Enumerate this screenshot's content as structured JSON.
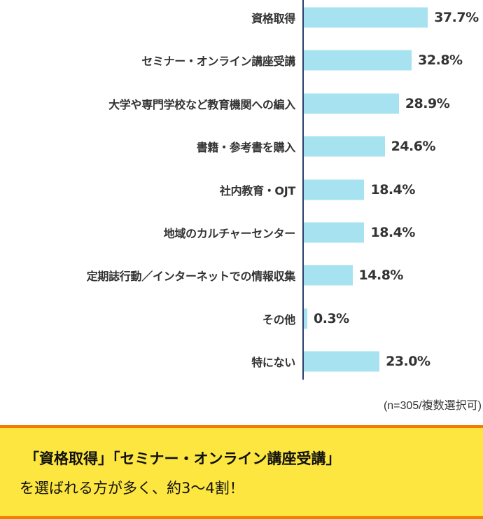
{
  "chart_data": {
    "type": "bar",
    "orientation": "horizontal",
    "categories": [
      "資格取得",
      "セミナー・オンライン講座受講",
      "大学や専門学校など教育機関への編入",
      "書籍・参考書を購入",
      "社内教育・OJT",
      "地域のカルチャーセンター",
      "定期誌行動／インターネットでの情報収集",
      "その他",
      "特にない"
    ],
    "values": [
      37.7,
      32.8,
      28.9,
      24.6,
      18.4,
      18.4,
      14.8,
      0.3,
      23.0
    ],
    "value_labels": [
      "37.7%",
      "32.8%",
      "28.9%",
      "24.6%",
      "18.4%",
      "18.4%",
      "14.8%",
      "0.3%",
      "23.0%"
    ],
    "xlim": [
      0,
      45
    ],
    "colors": {
      "bar": "#a6e2ef",
      "axis": "#2b3f6c"
    }
  },
  "note": "(n=305/複数選択可)",
  "summary": {
    "line1": "「資格取得」「セミナー・オンライン講座受講」",
    "line2": "を選ばれる方が多く、約3〜4割！"
  }
}
